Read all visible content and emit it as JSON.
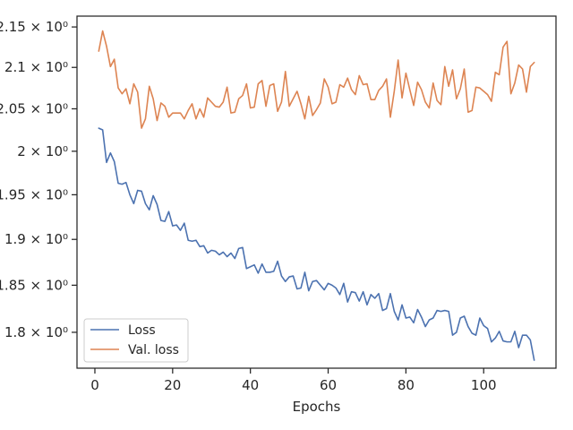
{
  "chart_data": {
    "type": "line",
    "title": "",
    "xlabel": "Epochs",
    "ylabel": "",
    "xlim": [
      -4.6,
      118.6
    ],
    "ylim": [
      1.7628,
      2.1636
    ],
    "y_scale": "log",
    "grid": false,
    "legend_position": "lower-left",
    "x_ticks": [
      0,
      20,
      40,
      60,
      80,
      100
    ],
    "x_tick_labels": [
      "0",
      "20",
      "40",
      "60",
      "80",
      "100"
    ],
    "y_ticks": [
      1.8,
      1.85,
      1.9,
      1.95,
      2.0,
      2.05,
      2.1,
      2.15
    ],
    "y_tick_labels": [
      "1.8 × 10⁰",
      "1.85 × 10⁰",
      "1.9 × 10⁰",
      "1.95 × 10⁰",
      "2 × 10⁰",
      "2.05 × 10⁰",
      "2.1 × 10⁰",
      "2.15 × 10⁰"
    ],
    "x": [
      1,
      2,
      3,
      4,
      5,
      6,
      7,
      8,
      9,
      10,
      11,
      12,
      13,
      14,
      15,
      16,
      17,
      18,
      19,
      20,
      21,
      22,
      23,
      24,
      25,
      26,
      27,
      28,
      29,
      30,
      31,
      32,
      33,
      34,
      35,
      36,
      37,
      38,
      39,
      40,
      41,
      42,
      43,
      44,
      45,
      46,
      47,
      48,
      49,
      50,
      51,
      52,
      53,
      54,
      55,
      56,
      57,
      58,
      59,
      60,
      61,
      62,
      63,
      64,
      65,
      66,
      67,
      68,
      69,
      70,
      71,
      72,
      73,
      74,
      75,
      76,
      77,
      78,
      79,
      80,
      81,
      82,
      83,
      84,
      85,
      86,
      87,
      88,
      89,
      90,
      91,
      92,
      93,
      94,
      95,
      96,
      97,
      98,
      99,
      100,
      101,
      102,
      103,
      104,
      105,
      106,
      107,
      108,
      109,
      110,
      111,
      112,
      113
    ],
    "series": [
      {
        "name": "Loss",
        "color": "#4c72b0",
        "values": [
          2.027,
          2.025,
          1.987,
          1.998,
          1.988,
          1.963,
          1.962,
          1.964,
          1.95,
          1.94,
          1.955,
          1.954,
          1.94,
          1.933,
          1.949,
          1.939,
          1.921,
          1.92,
          1.931,
          1.915,
          1.916,
          1.91,
          1.918,
          1.899,
          1.898,
          1.899,
          1.892,
          1.893,
          1.885,
          1.888,
          1.887,
          1.883,
          1.886,
          1.881,
          1.885,
          1.879,
          1.89,
          1.891,
          1.868,
          1.87,
          1.872,
          1.863,
          1.873,
          1.864,
          1.864,
          1.865,
          1.876,
          1.86,
          1.854,
          1.859,
          1.86,
          1.846,
          1.847,
          1.864,
          1.844,
          1.854,
          1.855,
          1.85,
          1.845,
          1.852,
          1.85,
          1.847,
          1.84,
          1.852,
          1.832,
          1.843,
          1.842,
          1.833,
          1.843,
          1.829,
          1.84,
          1.836,
          1.841,
          1.823,
          1.825,
          1.841,
          1.822,
          1.813,
          1.829,
          1.815,
          1.816,
          1.81,
          1.824,
          1.816,
          1.806,
          1.813,
          1.815,
          1.823,
          1.822,
          1.823,
          1.822,
          1.797,
          1.8,
          1.815,
          1.817,
          1.806,
          1.799,
          1.797,
          1.815,
          1.807,
          1.804,
          1.79,
          1.794,
          1.801,
          1.791,
          1.79,
          1.79,
          1.801,
          1.784,
          1.797,
          1.797,
          1.792,
          1.771
        ]
      },
      {
        "name": "Val. loss",
        "color": "#dd8452",
        "values": [
          2.12,
          2.145,
          2.126,
          2.101,
          2.11,
          2.075,
          2.068,
          2.074,
          2.056,
          2.08,
          2.07,
          2.027,
          2.038,
          2.077,
          2.062,
          2.036,
          2.057,
          2.053,
          2.04,
          2.045,
          2.045,
          2.045,
          2.038,
          2.048,
          2.056,
          2.038,
          2.05,
          2.04,
          2.063,
          2.058,
          2.053,
          2.052,
          2.058,
          2.076,
          2.045,
          2.046,
          2.062,
          2.066,
          2.08,
          2.051,
          2.052,
          2.08,
          2.084,
          2.053,
          2.078,
          2.08,
          2.047,
          2.058,
          2.095,
          2.053,
          2.062,
          2.071,
          2.056,
          2.038,
          2.065,
          2.042,
          2.049,
          2.057,
          2.086,
          2.076,
          2.056,
          2.058,
          2.079,
          2.076,
          2.087,
          2.073,
          2.067,
          2.09,
          2.079,
          2.08,
          2.061,
          2.061,
          2.072,
          2.077,
          2.086,
          2.04,
          2.071,
          2.109,
          2.063,
          2.093,
          2.073,
          2.054,
          2.082,
          2.073,
          2.058,
          2.051,
          2.081,
          2.06,
          2.055,
          2.101,
          2.077,
          2.097,
          2.062,
          2.074,
          2.098,
          2.046,
          2.048,
          2.076,
          2.075,
          2.071,
          2.067,
          2.059,
          2.094,
          2.091,
          2.125,
          2.132,
          2.068,
          2.081,
          2.103,
          2.098,
          2.07,
          2.101,
          2.106
        ]
      }
    ]
  }
}
